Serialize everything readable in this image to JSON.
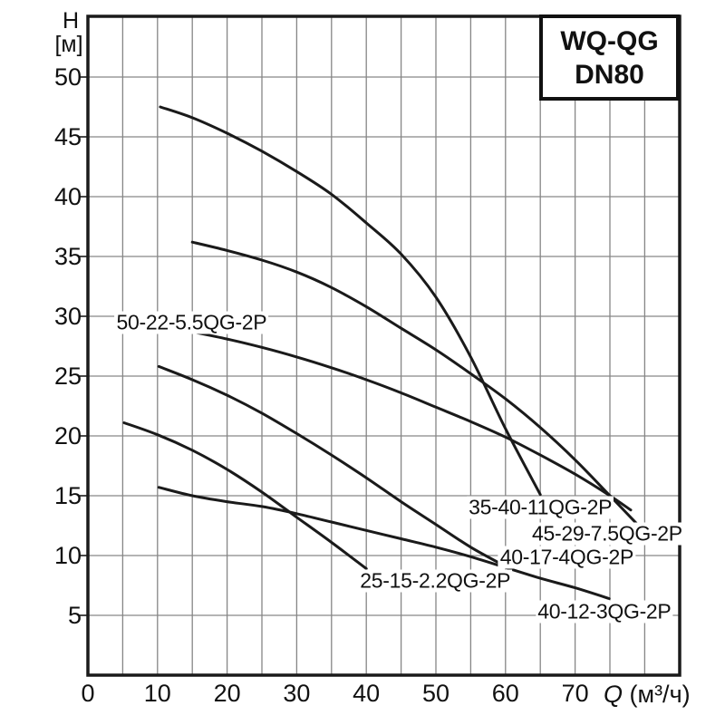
{
  "page": {
    "background": "#ffffff"
  },
  "title_box": {
    "line1": "WQ-QG",
    "line2": "DN80"
  },
  "axes": {
    "y_title": "H",
    "y_unit": "[м]",
    "x_title_q": "Q",
    "x_title_unit": " (м³/ч)",
    "y_ticks": [
      5,
      10,
      15,
      20,
      25,
      30,
      35,
      40,
      45,
      50
    ],
    "x_tick_labels": [
      0,
      10,
      20,
      30,
      40,
      50,
      60,
      70
    ],
    "x_minor_step": 5,
    "x_max": 85,
    "y_grid_step": 5,
    "grid_color": "#868686",
    "border_color": "#1a1a1a",
    "curve_color": "#1a1a1a"
  },
  "chart_data": {
    "type": "line",
    "title": "WQ-QG DN80",
    "xlabel": "Q (м³/ч)",
    "ylabel": "H [м]",
    "xlim": [
      0,
      85
    ],
    "ylim": [
      0,
      55
    ],
    "grid": true,
    "legend_position": "inline-labels",
    "series": [
      {
        "name": "35-40-11QG-2P",
        "points": [
          [
            10.4,
            47.5
          ],
          [
            15,
            46.6
          ],
          [
            20,
            45.3
          ],
          [
            25,
            43.8
          ],
          [
            30,
            42.1
          ],
          [
            35,
            40.2
          ],
          [
            40,
            37.8
          ],
          [
            45,
            35.2
          ],
          [
            50,
            31.6
          ],
          [
            55,
            26.6
          ],
          [
            60,
            20.6
          ],
          [
            65,
            15.1
          ]
        ],
        "label": {
          "q": 65.0,
          "h": 14.0
        }
      },
      {
        "name": "45-29-7.5QG-2P",
        "points": [
          [
            15,
            36.2
          ],
          [
            20,
            35.5
          ],
          [
            25,
            34.7
          ],
          [
            30,
            33.7
          ],
          [
            35,
            32.4
          ],
          [
            40,
            30.8
          ],
          [
            45,
            29
          ],
          [
            50,
            27.2
          ],
          [
            55,
            25.2
          ],
          [
            60,
            23.1
          ],
          [
            65,
            20.7
          ],
          [
            70,
            18
          ],
          [
            75,
            15
          ],
          [
            78.8,
            12.7
          ]
        ],
        "label": {
          "q": 74.6,
          "h": 11.8
        }
      },
      {
        "name": "50-22-5.5QG-2P",
        "points": [
          [
            15,
            28.7
          ],
          [
            20,
            28.1
          ],
          [
            25,
            27.4
          ],
          [
            30,
            26.6
          ],
          [
            35,
            25.7
          ],
          [
            40,
            24.7
          ],
          [
            45,
            23.6
          ],
          [
            50,
            22.4
          ],
          [
            55,
            21.2
          ],
          [
            60,
            19.9
          ],
          [
            65,
            18.4
          ],
          [
            70,
            16.8
          ],
          [
            75,
            15
          ],
          [
            78,
            13.8
          ]
        ],
        "label": {
          "q": 14.9,
          "h": 29.5
        }
      },
      {
        "name": "40-17-4QG-2P",
        "points": [
          [
            10.2,
            25.8
          ],
          [
            15,
            24.7
          ],
          [
            20,
            23.4
          ],
          [
            25,
            21.9
          ],
          [
            30,
            20.2
          ],
          [
            35,
            18.4
          ],
          [
            40,
            16.5
          ],
          [
            45,
            14.5
          ],
          [
            50,
            12.6
          ],
          [
            55,
            10.7
          ],
          [
            60,
            9.1
          ]
        ],
        "label": {
          "q": 68.8,
          "h": 9.85
        }
      },
      {
        "name": "25-15-2.2QG-2P",
        "points": [
          [
            5.2,
            21.1
          ],
          [
            10,
            20.1
          ],
          [
            15,
            18.8
          ],
          [
            20,
            17.2
          ],
          [
            25,
            15.3
          ],
          [
            30,
            13.2
          ],
          [
            35,
            11.1
          ],
          [
            40,
            8.9
          ]
        ],
        "label": {
          "q": 49.9,
          "h": 7.9
        }
      },
      {
        "name": "40-12-3QG-2P",
        "points": [
          [
            10.2,
            15.7
          ],
          [
            15,
            15.0
          ],
          [
            20,
            14.5
          ],
          [
            25,
            14.1
          ],
          [
            30,
            13.5
          ],
          [
            35,
            12.8
          ],
          [
            40,
            12.1
          ],
          [
            45,
            11.4
          ],
          [
            50,
            10.7
          ],
          [
            55,
            9.9
          ],
          [
            60,
            9.0
          ],
          [
            65,
            8.1
          ],
          [
            70,
            7.3
          ],
          [
            74.9,
            6.4
          ]
        ],
        "label": {
          "q": 74.2,
          "h": 5.3
        }
      }
    ]
  }
}
